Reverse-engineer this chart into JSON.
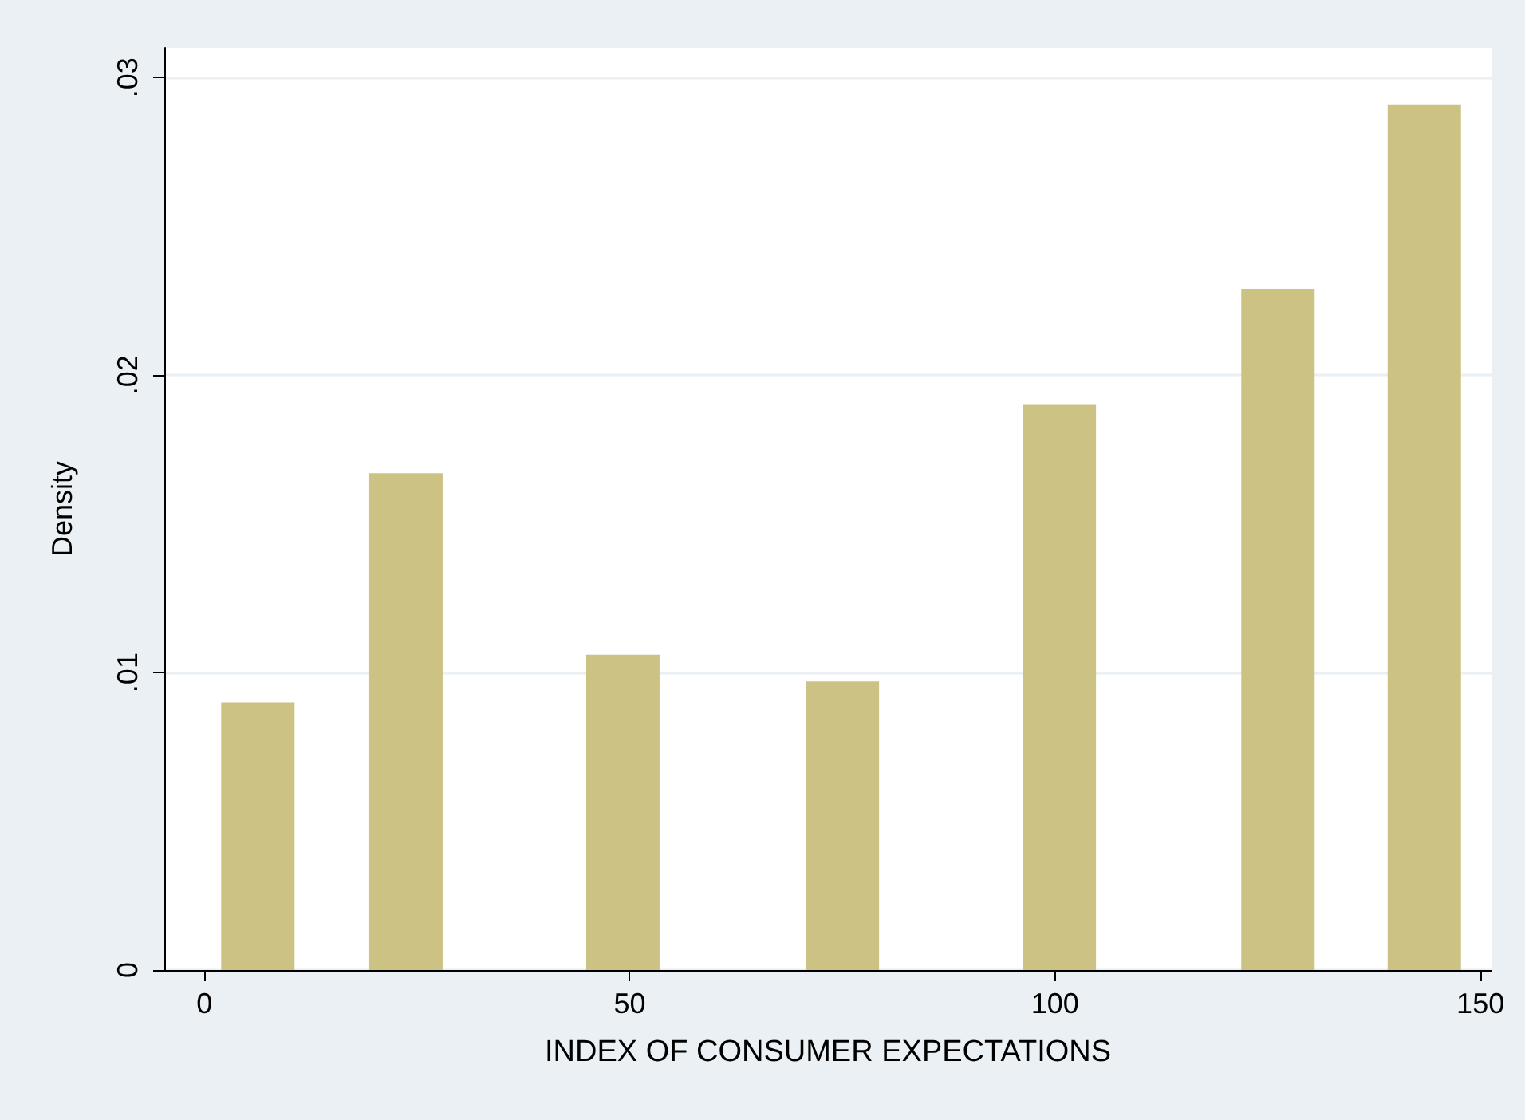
{
  "chart_data": {
    "type": "bar",
    "xlabel": "INDEX OF CONSUMER EXPECTATIONS",
    "ylabel": "Density",
    "x": [
      6.3,
      23.7,
      49.2,
      75,
      100.5,
      126.2,
      143.4
    ],
    "values": [
      0.009,
      0.0167,
      0.0106,
      0.0097,
      0.019,
      0.0229,
      0.0291
    ],
    "color": "#ccc283",
    "xlim": [
      -4.7,
      151.3
    ],
    "xticks": [
      0,
      50,
      100,
      150
    ],
    "ylim": [
      0,
      0.031
    ],
    "yticks": [
      {
        "value": 0,
        "label": "0"
      },
      {
        "value": 0.01,
        "label": ".01"
      },
      {
        "value": 0.02,
        "label": ".02"
      },
      {
        "value": 0.03,
        "label": ".03"
      }
    ],
    "grid": "y"
  }
}
